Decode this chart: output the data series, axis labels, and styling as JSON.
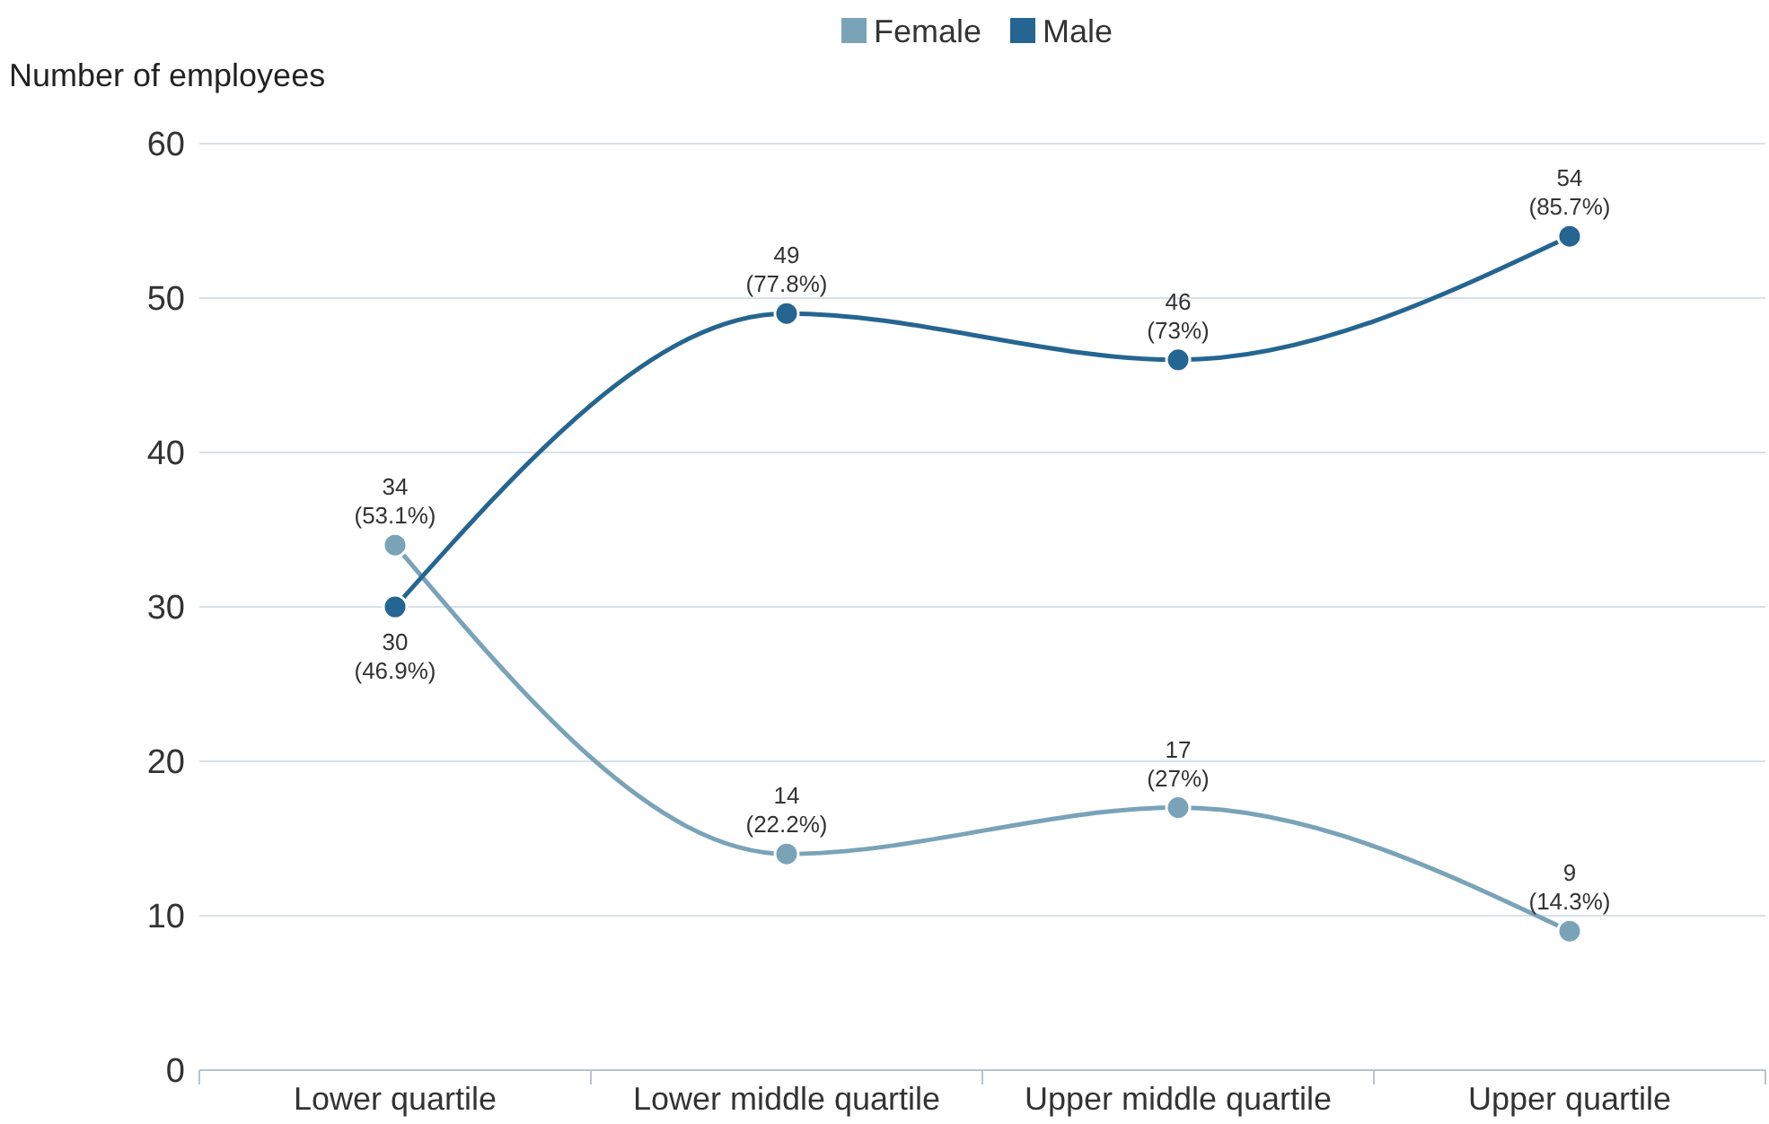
{
  "chart_data": {
    "type": "line",
    "ylabel": "Number of employees",
    "categories": [
      "Lower quartile",
      "Lower middle quartile",
      "Upper middle quartile",
      "Upper quartile"
    ],
    "series": [
      {
        "name": "Female",
        "color": "#7aa3b8",
        "values": [
          34,
          14,
          17,
          9
        ],
        "value_labels": [
          "34 (53.1%)",
          "14 (22.2%)",
          "17 (27%)",
          "9 (14.3%)"
        ]
      },
      {
        "name": "Male",
        "color": "#256591",
        "values": [
          30,
          49,
          46,
          54
        ],
        "value_labels": [
          "30 (46.9%)",
          "49 (77.8%)",
          "46 (73%)",
          "54 (85.7%)"
        ]
      }
    ],
    "ylim": [
      0,
      60
    ],
    "yticks": [
      0,
      10,
      20,
      30,
      40,
      50,
      60
    ],
    "grid": "y",
    "legend": "top",
    "marker": "circle",
    "line_style": "solid"
  }
}
